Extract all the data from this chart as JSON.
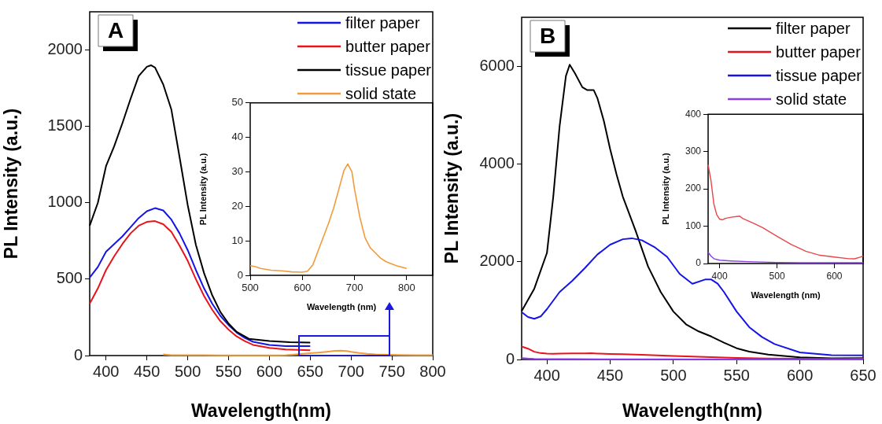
{
  "chart_data": [
    {
      "type": "line",
      "title": "A",
      "xlabel": "Wavelength(nm)",
      "ylabel": "PL Intensity (a.u.)",
      "xlim": [
        380,
        800
      ],
      "ylim": [
        0,
        2250
      ],
      "xticks": [
        400,
        450,
        500,
        550,
        600,
        650,
        700,
        750,
        800
      ],
      "yticks": [
        0,
        500,
        1000,
        1500,
        2000
      ],
      "legend": "top right",
      "grid": false,
      "series": [
        {
          "name": "filter paper",
          "color": "#1414e6",
          "x": [
            380,
            390,
            400,
            410,
            420,
            430,
            440,
            450,
            460,
            470,
            480,
            490,
            500,
            510,
            520,
            530,
            540,
            550,
            560,
            570,
            580,
            600,
            620,
            650
          ],
          "values": [
            510,
            580,
            680,
            730,
            780,
            840,
            900,
            945,
            965,
            950,
            890,
            800,
            690,
            560,
            440,
            340,
            260,
            200,
            150,
            115,
            90,
            70,
            62,
            62
          ]
        },
        {
          "name": "butter paper",
          "color": "#e8141c",
          "x": [
            380,
            390,
            400,
            410,
            420,
            430,
            440,
            450,
            460,
            470,
            480,
            490,
            500,
            510,
            520,
            530,
            540,
            550,
            560,
            570,
            580,
            600,
            620,
            650
          ],
          "values": [
            340,
            440,
            560,
            650,
            730,
            800,
            850,
            875,
            880,
            860,
            810,
            720,
            620,
            500,
            390,
            300,
            225,
            170,
            125,
            95,
            70,
            50,
            40,
            35
          ]
        },
        {
          "name": "tissue paper",
          "color": "#000000",
          "x": [
            380,
            390,
            400,
            410,
            420,
            430,
            440,
            450,
            455,
            460,
            470,
            480,
            490,
            500,
            510,
            520,
            530,
            540,
            550,
            560,
            575,
            600,
            625,
            650
          ],
          "values": [
            850,
            1000,
            1240,
            1370,
            1520,
            1680,
            1830,
            1890,
            1900,
            1885,
            1775,
            1610,
            1300,
            985,
            725,
            540,
            395,
            285,
            210,
            155,
            110,
            95,
            88,
            85
          ]
        },
        {
          "name": "solid state",
          "color": "#f29b3d",
          "x": [
            470,
            480,
            490,
            500,
            520,
            540,
            560,
            580,
            600,
            610,
            620,
            630,
            640,
            650,
            660,
            670,
            680,
            687,
            695,
            700,
            710,
            720,
            730,
            740,
            750,
            760,
            780,
            800
          ],
          "values": [
            8,
            3,
            3,
            2.8,
            2,
            1.5,
            1.3,
            1,
            0.9,
            1.2,
            3,
            7,
            11,
            15,
            19.5,
            25,
            30.5,
            32.3,
            30,
            25,
            17,
            11,
            8,
            6.5,
            5,
            4,
            2.8,
            2
          ]
        }
      ]
    },
    {
      "type": "line",
      "xlabel": "Wavelength (nm)",
      "ylabel": "PL Intensity (a.u.)",
      "xlim": [
        500,
        850
      ],
      "ylim": [
        0,
        50
      ],
      "xticks": [
        500,
        600,
        700,
        800
      ],
      "yticks": [
        0,
        10,
        20,
        30,
        40,
        50
      ],
      "grid": false,
      "series": [
        {
          "color": "#f29b3d",
          "x": [
            500,
            510,
            520,
            540,
            560,
            580,
            600,
            610,
            620,
            630,
            640,
            650,
            660,
            670,
            680,
            687,
            695,
            700,
            710,
            720,
            730,
            740,
            750,
            760,
            780,
            800
          ],
          "values": [
            2.8,
            2.5,
            2,
            1.5,
            1.3,
            1,
            0.9,
            1.2,
            3,
            7,
            11,
            15,
            19.5,
            25,
            30.5,
            32.3,
            30,
            25,
            17,
            11,
            8,
            6.5,
            5,
            4,
            2.8,
            2
          ]
        }
      ]
    },
    {
      "type": "line",
      "title": "B",
      "xlabel": "Wavelength(nm)",
      "ylabel": "PL Intensity (a.u.)",
      "xlim": [
        380,
        650
      ],
      "ylim": [
        0,
        7000
      ],
      "xticks": [
        400,
        450,
        500,
        550,
        600,
        650
      ],
      "yticks": [
        0,
        2000,
        4000,
        6000
      ],
      "legend": "top right",
      "grid": false,
      "series": [
        {
          "name": "filter paper",
          "color": "#000000",
          "x": [
            380,
            390,
            400,
            405,
            410,
            415,
            418,
            422,
            428,
            432,
            437,
            440,
            445,
            450,
            455,
            460,
            470,
            480,
            490,
            500,
            510,
            520,
            530,
            540,
            550,
            560,
            575,
            600,
            625,
            650
          ],
          "values": [
            990,
            1450,
            2180,
            3330,
            4770,
            5800,
            6030,
            5860,
            5570,
            5510,
            5510,
            5340,
            4880,
            4300,
            3790,
            3330,
            2640,
            1900,
            1380,
            980,
            720,
            575,
            470,
            345,
            230,
            160,
            100,
            45,
            25,
            30
          ]
        },
        {
          "name": "butter paper",
          "color": "#e8141c",
          "x": [
            380,
            385,
            390,
            395,
            400,
            405,
            410,
            420,
            430,
            435,
            440,
            450,
            460,
            475,
            500,
            525,
            550,
            575,
            600,
            625,
            635,
            645,
            650
          ],
          "values": [
            265,
            222,
            159,
            131,
            119,
            117,
            121,
            124,
            126,
            127,
            121,
            114,
            107,
            96,
            73,
            51,
            33,
            22,
            17.5,
            13,
            12.6,
            17,
            20
          ]
        },
        {
          "name": "tissue paper",
          "color": "#1414e6",
          "x": [
            380,
            385,
            390,
            395,
            400,
            410,
            420,
            430,
            440,
            450,
            460,
            467,
            475,
            485,
            495,
            505,
            515,
            525,
            530,
            535,
            540,
            550,
            560,
            570,
            580,
            600,
            625,
            650
          ],
          "values": [
            970,
            870,
            833,
            880,
            1030,
            1380,
            1610,
            1870,
            2150,
            2350,
            2460,
            2480,
            2440,
            2300,
            2100,
            1750,
            1550,
            1636,
            1636,
            1550,
            1380,
            980,
            660,
            460,
            316,
            144,
            90,
            86
          ]
        },
        {
          "name": "solid state",
          "color": "#8b3ee8",
          "x": [
            380,
            385,
            390,
            400,
            420,
            450,
            500,
            550,
            600,
            650
          ],
          "values": [
            30,
            20,
            13,
            9,
            7,
            5,
            3,
            2,
            2,
            2
          ]
        }
      ]
    },
    {
      "type": "line",
      "xlabel": "Wavelength (nm)",
      "ylabel": "PL Intensity (a.u.)",
      "xlim": [
        380,
        650
      ],
      "ylim": [
        0,
        400
      ],
      "xticks": [
        400,
        500,
        600
      ],
      "yticks": [
        0,
        100,
        200,
        300,
        400
      ],
      "grid": false,
      "series": [
        {
          "color": "#e8474a",
          "x": [
            380,
            385,
            390,
            395,
            400,
            405,
            410,
            420,
            430,
            435,
            440,
            450,
            460,
            475,
            500,
            525,
            550,
            575,
            600,
            625,
            635,
            645,
            650
          ],
          "values": [
            265,
            222,
            159,
            131,
            119,
            117,
            121,
            124,
            126,
            127,
            121,
            114,
            107,
            96,
            73,
            51,
            33,
            22,
            17.5,
            13,
            12.6,
            17,
            20
          ]
        },
        {
          "color": "#8b3ee8",
          "x": [
            380,
            385,
            390,
            400,
            420,
            450,
            500,
            550,
            600,
            650
          ],
          "values": [
            30,
            20,
            13,
            9,
            7,
            5,
            3,
            2,
            2,
            2
          ]
        }
      ]
    }
  ]
}
